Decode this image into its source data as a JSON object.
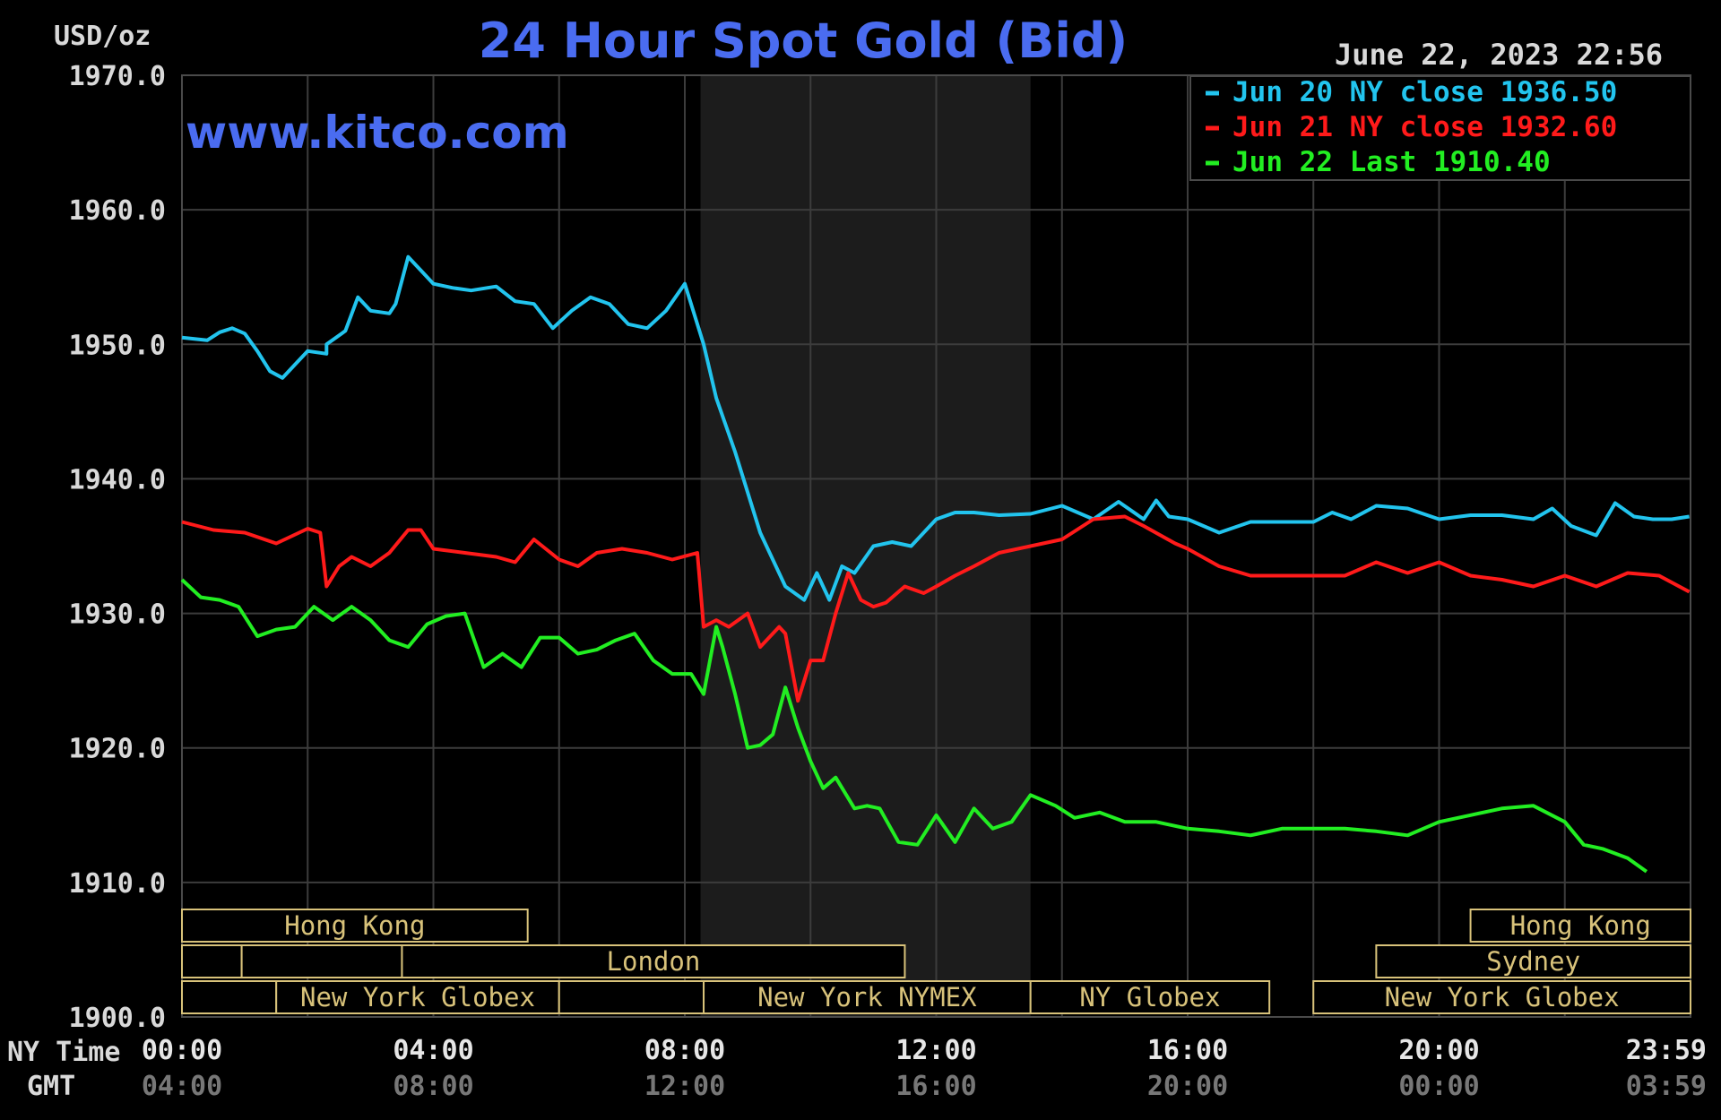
{
  "colors": {
    "background": "#000000",
    "grid": "#3c3c3c",
    "title": "#4a6cf0",
    "session_border": "#d8c27a",
    "jun20": "#22c4ee",
    "jun21": "#ff1a1a",
    "jun22": "#22ee22"
  },
  "chart_data": {
    "type": "line",
    "title": "24 Hour Spot Gold (Bid)",
    "ylabel": "USD/oz",
    "watermark": "www.kitco.com",
    "timestamp": "June 22, 2023 22:56",
    "ylim": [
      1900,
      1970
    ],
    "xlim": [
      0,
      24
    ],
    "grid": true,
    "legend_position": "top-right",
    "y_ticks": [
      {
        "value": 1970,
        "label": "1970.0"
      },
      {
        "value": 1960,
        "label": "1960.0"
      },
      {
        "value": 1950,
        "label": "1950.0"
      },
      {
        "value": 1940,
        "label": "1940.0"
      },
      {
        "value": 1930,
        "label": "1930.0"
      },
      {
        "value": 1920,
        "label": "1920.0"
      },
      {
        "value": 1910,
        "label": "1910.0"
      },
      {
        "value": 1900,
        "label": "1900.0"
      }
    ],
    "x_row_labels": {
      "ny": "NY Time",
      "gmt": "GMT"
    },
    "x_ticks": [
      {
        "value": 0,
        "ny": "00:00",
        "gmt": "04:00"
      },
      {
        "value": 4,
        "ny": "04:00",
        "gmt": "08:00"
      },
      {
        "value": 8,
        "ny": "08:00",
        "gmt": "12:00"
      },
      {
        "value": 12,
        "ny": "12:00",
        "gmt": "16:00"
      },
      {
        "value": 16,
        "ny": "16:00",
        "gmt": "20:00"
      },
      {
        "value": 20,
        "ny": "20:00",
        "gmt": "00:00"
      },
      {
        "value": 23.98,
        "ny": "23:59",
        "gmt": "03:59"
      }
    ],
    "highlight_range": [
      8.25,
      13.5
    ],
    "series": [
      {
        "name": "Jun 20 NY close 1936.50",
        "color": "#22c4ee",
        "x": [
          0,
          0.4,
          0.6,
          0.8,
          1.0,
          1.2,
          1.4,
          1.6,
          1.8,
          2.0,
          2.3,
          2.3,
          2.6,
          2.8,
          3.0,
          3.3,
          3.4,
          3.6,
          3.8,
          4.0,
          4.3,
          4.6,
          5.0,
          5.3,
          5.6,
          5.9,
          6.2,
          6.5,
          6.8,
          7.1,
          7.4,
          7.7,
          8.0,
          8.3,
          8.5,
          8.8,
          9.2,
          9.6,
          9.9,
          10.1,
          10.3,
          10.5,
          10.7,
          11.0,
          11.3,
          11.6,
          12.0,
          12.3,
          12.6,
          13.0,
          13.5,
          14.0,
          14.5,
          14.9,
          15.3,
          15.5,
          15.7,
          16.0,
          16.5,
          17.0,
          17.5,
          18.0,
          18.3,
          18.6,
          19.0,
          19.5,
          20.0,
          20.5,
          21.0,
          21.5,
          21.8,
          22.1,
          22.5,
          22.8,
          23.1,
          23.4,
          23.7,
          23.98
        ],
        "y": [
          1950.5,
          1950.3,
          1950.9,
          1951.2,
          1950.8,
          1949.5,
          1948.0,
          1947.5,
          1948.5,
          1949.5,
          1949.3,
          1950.0,
          1951.0,
          1953.5,
          1952.5,
          1952.3,
          1953.0,
          1956.5,
          1955.5,
          1954.5,
          1954.2,
          1954.0,
          1954.3,
          1953.2,
          1953.0,
          1951.2,
          1952.5,
          1953.5,
          1953.0,
          1951.5,
          1951.2,
          1952.5,
          1954.5,
          1950.0,
          1946.0,
          1942.0,
          1936.0,
          1932.0,
          1931.0,
          1933.0,
          1931.0,
          1933.5,
          1933.0,
          1935.0,
          1935.3,
          1935.0,
          1937.0,
          1937.5,
          1937.5,
          1937.3,
          1937.4,
          1938.0,
          1937.0,
          1938.3,
          1937.0,
          1938.4,
          1937.2,
          1937.0,
          1936.0,
          1936.8,
          1936.8,
          1936.8,
          1937.5,
          1937.0,
          1938.0,
          1937.8,
          1937.0,
          1937.3,
          1937.3,
          1937.0,
          1937.8,
          1936.5,
          1935.8,
          1938.2,
          1937.2,
          1937.0,
          1937.0,
          1937.2
        ]
      },
      {
        "name": "Jun 21 NY close 1932.60",
        "color": "#ff1a1a",
        "x": [
          0,
          0.5,
          1.0,
          1.5,
          2.0,
          2.2,
          2.3,
          2.5,
          2.7,
          3.0,
          3.3,
          3.6,
          3.8,
          4.0,
          4.5,
          5.0,
          5.3,
          5.6,
          6.0,
          6.3,
          6.6,
          7.0,
          7.4,
          7.8,
          8.2,
          8.3,
          8.5,
          8.7,
          9.0,
          9.2,
          9.5,
          9.6,
          9.8,
          10.0,
          10.2,
          10.4,
          10.6,
          10.8,
          11.0,
          11.2,
          11.5,
          11.8,
          12.0,
          12.3,
          12.6,
          13.0,
          13.5,
          14.0,
          14.5,
          15.0,
          15.3,
          15.8,
          16.0,
          16.5,
          17.0,
          17.5,
          18.0,
          18.5,
          19.0,
          19.5,
          20.0,
          20.5,
          21.0,
          21.5,
          22.0,
          22.5,
          23.0,
          23.5,
          23.98
        ],
        "y": [
          1936.8,
          1936.2,
          1936.0,
          1935.2,
          1936.3,
          1936.0,
          1932.0,
          1933.5,
          1934.2,
          1933.5,
          1934.5,
          1936.2,
          1936.2,
          1934.8,
          1934.5,
          1934.2,
          1933.8,
          1935.5,
          1934.0,
          1933.5,
          1934.5,
          1934.8,
          1934.5,
          1934.0,
          1934.5,
          1929.0,
          1929.5,
          1929.0,
          1930.0,
          1927.5,
          1929.0,
          1928.5,
          1923.5,
          1926.5,
          1926.5,
          1930.0,
          1933.0,
          1931.0,
          1930.5,
          1930.8,
          1932.0,
          1931.5,
          1932.0,
          1932.8,
          1933.5,
          1934.5,
          1935.0,
          1935.5,
          1937.0,
          1937.2,
          1936.5,
          1935.2,
          1934.8,
          1933.5,
          1932.8,
          1932.8,
          1932.8,
          1932.8,
          1933.8,
          1933.0,
          1933.8,
          1932.8,
          1932.5,
          1932.0,
          1932.8,
          1932.0,
          1933.0,
          1932.8,
          1931.6
        ]
      },
      {
        "name": "Jun 22 Last 1910.40",
        "color": "#22ee22",
        "x": [
          0,
          0.3,
          0.6,
          0.9,
          1.2,
          1.5,
          1.8,
          2.1,
          2.4,
          2.7,
          3.0,
          3.3,
          3.6,
          3.9,
          4.2,
          4.5,
          4.8,
          5.1,
          5.4,
          5.7,
          6.0,
          6.3,
          6.6,
          6.9,
          7.2,
          7.5,
          7.8,
          8.1,
          8.3,
          8.5,
          8.6,
          8.8,
          9.0,
          9.2,
          9.4,
          9.6,
          9.8,
          10.0,
          10.2,
          10.4,
          10.7,
          10.9,
          11.1,
          11.4,
          11.7,
          12.0,
          12.3,
          12.6,
          12.9,
          13.2,
          13.5,
          13.9,
          14.2,
          14.6,
          15.0,
          15.5,
          16.0,
          16.5,
          17.0,
          17.5,
          18.0,
          18.5,
          19.0,
          19.5,
          20.0,
          20.5,
          21.0,
          21.5,
          22.0,
          22.3,
          22.6,
          23.0,
          23.3
        ],
        "y": [
          1932.5,
          1931.2,
          1931.0,
          1930.5,
          1928.3,
          1928.8,
          1929.0,
          1930.5,
          1929.5,
          1930.5,
          1929.5,
          1928.0,
          1927.5,
          1929.2,
          1929.8,
          1930.0,
          1926.0,
          1927.0,
          1926.0,
          1928.2,
          1928.2,
          1927.0,
          1927.3,
          1928.0,
          1928.5,
          1926.5,
          1925.5,
          1925.5,
          1924.0,
          1929.0,
          1927.5,
          1924.0,
          1920.0,
          1920.2,
          1921.0,
          1924.5,
          1921.5,
          1919.0,
          1917.0,
          1917.8,
          1915.5,
          1915.7,
          1915.5,
          1913.0,
          1912.8,
          1915.0,
          1913.0,
          1915.5,
          1914.0,
          1914.5,
          1916.5,
          1915.7,
          1914.8,
          1915.2,
          1914.5,
          1914.5,
          1914.0,
          1913.8,
          1913.5,
          1914.0,
          1914.0,
          1914.0,
          1913.8,
          1913.5,
          1914.5,
          1915.0,
          1915.5,
          1915.7,
          1914.5,
          1912.8,
          1912.5,
          1911.8,
          1910.8
        ]
      }
    ],
    "sessions": [
      {
        "label": "Hong Kong",
        "row": 0,
        "start": 0,
        "end": 5.5
      },
      {
        "label": "Hong Kong",
        "row": 0,
        "start": 20.5,
        "end": 24
      },
      {
        "label": "",
        "row": 1,
        "start": 0,
        "end": 0.95
      },
      {
        "label": "",
        "row": 1,
        "start": 0.95,
        "end": 3.5
      },
      {
        "label": "London",
        "row": 1,
        "start": 3.5,
        "end": 11.5
      },
      {
        "label": "Sydney",
        "row": 1,
        "start": 19.0,
        "end": 24
      },
      {
        "label": "",
        "row": 2,
        "start": 0,
        "end": 1.5
      },
      {
        "label": "New York Globex",
        "row": 2,
        "start": 1.5,
        "end": 6.0
      },
      {
        "label": "",
        "row": 2,
        "start": 6.0,
        "end": 8.3
      },
      {
        "label": "New York NYMEX",
        "row": 2,
        "start": 8.3,
        "end": 13.5
      },
      {
        "label": "NY Globex",
        "row": 2,
        "start": 13.5,
        "end": 17.3
      },
      {
        "label": "New York Globex",
        "row": 2,
        "start": 18.0,
        "end": 24
      }
    ]
  }
}
